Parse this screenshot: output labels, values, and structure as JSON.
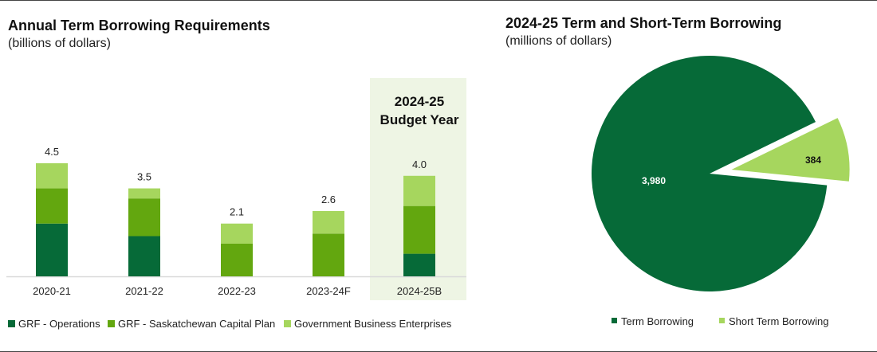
{
  "chart_data": [
    {
      "type": "bar",
      "stacked": true,
      "title": "Annual Term Borrowing Requirements",
      "subtitle": "(billions of dollars)",
      "categories": [
        "2020-21",
        "2021-22",
        "2022-23",
        "2023-24F",
        "2024-25B"
      ],
      "series": [
        {
          "name": "GRF - Operations",
          "color": "#066A38",
          "values": [
            2.1,
            1.6,
            0,
            0,
            0.9
          ]
        },
        {
          "name": "GRF - Saskatchewan Capital Plan",
          "color": "#63A70F",
          "values": [
            1.4,
            1.5,
            1.3,
            1.7,
            1.9
          ]
        },
        {
          "name": "Government Business Enterprises",
          "color": "#A6D65E",
          "values": [
            1.0,
            0.4,
            0.8,
            0.9,
            1.2
          ]
        }
      ],
      "totals": [
        "4.5",
        "3.5",
        "2.1",
        "2.6",
        "4.0"
      ],
      "highlight": {
        "category": "2024-25B",
        "label_line1": "2024-25",
        "label_line2": "Budget Year",
        "color": "#EEF5E4"
      },
      "ylim": [
        0,
        4.5
      ],
      "grid": false,
      "legend": "bottom"
    },
    {
      "type": "pie",
      "title": "2024-25 Term and Short-Term Borrowing",
      "subtitle": "(millions of dollars)",
      "slices": [
        {
          "name": "Term Borrowing",
          "value": 3980,
          "label": "3,980",
          "color": "#066A38"
        },
        {
          "name": "Short Term Borrowing",
          "value": 384,
          "label": "384",
          "color": "#A6D65E",
          "exploded": true
        }
      ],
      "legend": "bottom"
    }
  ]
}
